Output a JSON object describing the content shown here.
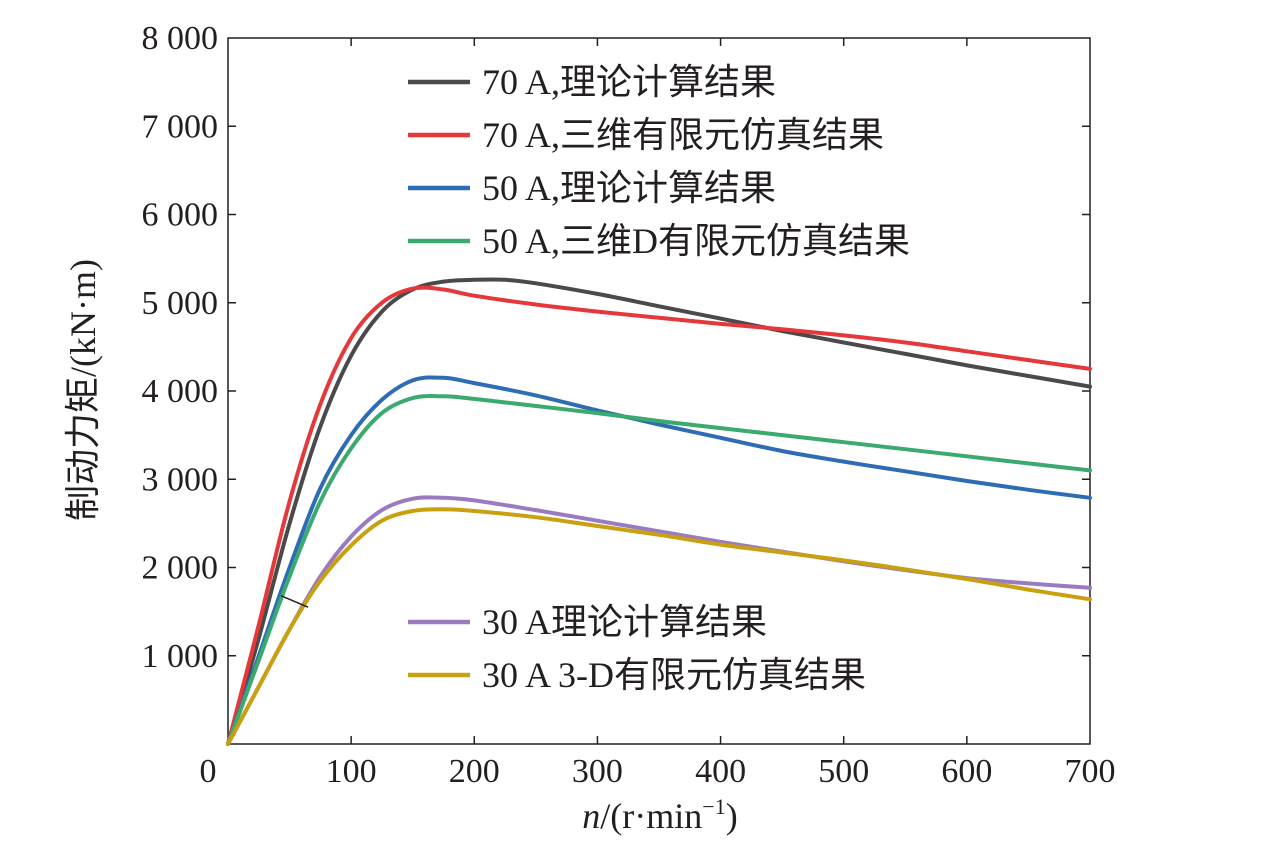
{
  "chart_data": {
    "type": "line",
    "title": "",
    "xlabel_var": "n",
    "xlabel_rest": "/(r·min",
    "xlabel_sup": "−1",
    "xlabel_close": ")",
    "ylabel": "制动力矩/(kN·m)",
    "xlim": [
      0,
      700
    ],
    "ylim": [
      0,
      8000
    ],
    "x_origin": 0,
    "x_ticks": [
      0,
      100,
      200,
      300,
      400,
      500,
      600,
      700
    ],
    "x_tick_labels": [
      "0",
      "100",
      "200",
      "300",
      "400",
      "500",
      "600",
      "700"
    ],
    "y_ticks": [
      1000,
      2000,
      3000,
      4000,
      5000,
      6000,
      7000,
      8000
    ],
    "y_tick_labels": [
      "1 000",
      "2 000",
      "3 000",
      "4 000",
      "5 000",
      "6 000",
      "7 000",
      "8 000"
    ],
    "grid": false,
    "legend_groups": [
      "top-left",
      "bottom-left"
    ],
    "series": [
      {
        "name": "70 A,理论计算结果",
        "color": "#4a4a4a",
        "group": 0,
        "points": [
          [
            0,
            0
          ],
          [
            25,
            1200
          ],
          [
            50,
            2500
          ],
          [
            75,
            3600
          ],
          [
            100,
            4400
          ],
          [
            125,
            4900
          ],
          [
            150,
            5150
          ],
          [
            175,
            5240
          ],
          [
            200,
            5260
          ],
          [
            225,
            5260
          ],
          [
            250,
            5220
          ],
          [
            300,
            5100
          ],
          [
            350,
            4960
          ],
          [
            400,
            4820
          ],
          [
            450,
            4680
          ],
          [
            500,
            4550
          ],
          [
            550,
            4420
          ],
          [
            600,
            4290
          ],
          [
            650,
            4170
          ],
          [
            700,
            4050
          ]
        ]
      },
      {
        "name": "70 A,三维有限元仿真结果",
        "color": "#e5383b",
        "group": 0,
        "points": [
          [
            0,
            0
          ],
          [
            25,
            1350
          ],
          [
            50,
            2750
          ],
          [
            75,
            3850
          ],
          [
            100,
            4600
          ],
          [
            125,
            5000
          ],
          [
            150,
            5160
          ],
          [
            175,
            5150
          ],
          [
            200,
            5080
          ],
          [
            250,
            4980
          ],
          [
            300,
            4900
          ],
          [
            350,
            4830
          ],
          [
            400,
            4760
          ],
          [
            450,
            4700
          ],
          [
            500,
            4630
          ],
          [
            550,
            4550
          ],
          [
            600,
            4450
          ],
          [
            650,
            4350
          ],
          [
            700,
            4250
          ]
        ]
      },
      {
        "name": "50 A,理论计算结果",
        "color": "#2e6db4",
        "group": 0,
        "points": [
          [
            0,
            0
          ],
          [
            25,
            1000
          ],
          [
            50,
            2000
          ],
          [
            75,
            2900
          ],
          [
            100,
            3500
          ],
          [
            125,
            3900
          ],
          [
            150,
            4120
          ],
          [
            175,
            4150
          ],
          [
            200,
            4090
          ],
          [
            250,
            3950
          ],
          [
            300,
            3780
          ],
          [
            350,
            3620
          ],
          [
            400,
            3470
          ],
          [
            450,
            3320
          ],
          [
            500,
            3200
          ],
          [
            550,
            3090
          ],
          [
            600,
            2980
          ],
          [
            650,
            2880
          ],
          [
            700,
            2790
          ]
        ]
      },
      {
        "name": "50 A,三维D有限元仿真结果",
        "color": "#3aaa6e",
        "group": 0,
        "points": [
          [
            0,
            0
          ],
          [
            25,
            950
          ],
          [
            50,
            1900
          ],
          [
            75,
            2750
          ],
          [
            100,
            3350
          ],
          [
            125,
            3750
          ],
          [
            150,
            3920
          ],
          [
            175,
            3940
          ],
          [
            200,
            3910
          ],
          [
            250,
            3830
          ],
          [
            300,
            3750
          ],
          [
            350,
            3660
          ],
          [
            400,
            3580
          ],
          [
            450,
            3500
          ],
          [
            500,
            3420
          ],
          [
            550,
            3340
          ],
          [
            600,
            3260
          ],
          [
            650,
            3180
          ],
          [
            700,
            3100
          ]
        ]
      },
      {
        "name": "30 A理论计算结果",
        "color": "#9b7bc0",
        "group": 1,
        "points": [
          [
            0,
            0
          ],
          [
            25,
            650
          ],
          [
            50,
            1300
          ],
          [
            75,
            1900
          ],
          [
            100,
            2350
          ],
          [
            125,
            2650
          ],
          [
            150,
            2780
          ],
          [
            175,
            2790
          ],
          [
            200,
            2760
          ],
          [
            250,
            2650
          ],
          [
            300,
            2530
          ],
          [
            350,
            2410
          ],
          [
            400,
            2290
          ],
          [
            450,
            2180
          ],
          [
            500,
            2070
          ],
          [
            550,
            1970
          ],
          [
            600,
            1880
          ],
          [
            650,
            1820
          ],
          [
            700,
            1770
          ]
        ]
      },
      {
        "name": "30 A 3-D有限元仿真结果",
        "color": "#c8a010",
        "group": 1,
        "points": [
          [
            0,
            0
          ],
          [
            25,
            650
          ],
          [
            50,
            1300
          ],
          [
            75,
            1850
          ],
          [
            100,
            2250
          ],
          [
            125,
            2530
          ],
          [
            150,
            2640
          ],
          [
            175,
            2660
          ],
          [
            200,
            2640
          ],
          [
            250,
            2570
          ],
          [
            300,
            2470
          ],
          [
            350,
            2370
          ],
          [
            400,
            2260
          ],
          [
            450,
            2170
          ],
          [
            500,
            2080
          ],
          [
            550,
            1980
          ],
          [
            600,
            1870
          ],
          [
            650,
            1750
          ],
          [
            700,
            1640
          ]
        ]
      }
    ]
  }
}
